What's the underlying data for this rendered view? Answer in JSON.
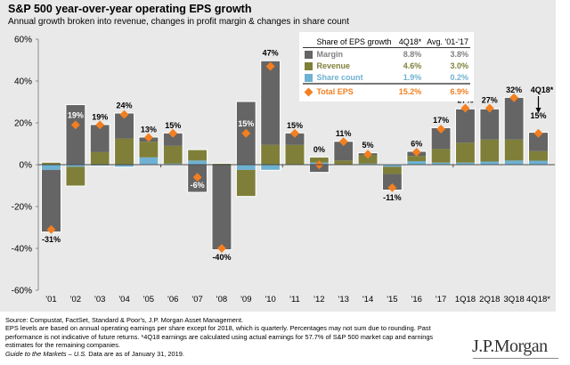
{
  "header": {
    "title": "S&P 500 year-over-year operating EPS growth",
    "subtitle": "Annual growth broken into revenue, changes in profit margin & changes in share count"
  },
  "legend": {
    "header": [
      "Share of EPS growth",
      "4Q18*",
      "Avg. '01-'17"
    ],
    "rows": [
      {
        "label": "Margin",
        "q": "8.8%",
        "avg": "3.8%",
        "color": "#656565"
      },
      {
        "label": "Revenue",
        "q": "4.6%",
        "avg": "3.0%",
        "color": "#7f7f3a"
      },
      {
        "label": "Share count",
        "q": "1.9%",
        "avg": "0.2%",
        "color": "#6fb1d2"
      },
      {
        "label": "Total EPS",
        "q": "15.2%",
        "avg": "6.9%",
        "color": "#f37f21"
      }
    ]
  },
  "chart_data": {
    "type": "bar",
    "stacked": true,
    "title": "S&P 500 year-over-year operating EPS growth",
    "subtitle": "Annual growth broken into revenue, changes in profit margin & changes in share count",
    "xlabel": "",
    "ylabel": "",
    "ylim": [
      -60,
      60
    ],
    "yticks": [
      60,
      40,
      20,
      0,
      -20,
      -40,
      -60
    ],
    "ytick_labels": [
      "60%",
      "40%",
      "20%",
      "0%",
      "-20%",
      "-40%",
      "-60%"
    ],
    "grid": false,
    "categories": [
      "'01",
      "'02",
      "'03",
      "'04",
      "'05",
      "'06",
      "'07",
      "'08",
      "'09",
      "'10",
      "'11",
      "'12",
      "'13",
      "'14",
      "'15",
      "'16",
      "'17",
      "1Q18",
      "2Q18",
      "3Q18",
      "4Q18*"
    ],
    "series": [
      {
        "name": "Share count",
        "color": "#6fb1d2",
        "values": [
          -2.5,
          -1.0,
          -0.5,
          -1.0,
          3.5,
          0.5,
          2.0,
          0.0,
          -2.5,
          -2.5,
          0.0,
          1.0,
          0.0,
          0.5,
          -1.0,
          1.7,
          1.0,
          1.0,
          1.5,
          2.0,
          1.9
        ]
      },
      {
        "name": "Revenue",
        "color": "#7f7f3a",
        "values": [
          1.0,
          -9.0,
          6.0,
          12.5,
          7.5,
          8.5,
          5.0,
          0.5,
          -12.5,
          9.5,
          9.5,
          2.5,
          2.0,
          4.0,
          -3.5,
          2.5,
          6.5,
          9.5,
          10.5,
          10.0,
          4.6
        ]
      },
      {
        "name": "Margin",
        "color": "#656565",
        "values": [
          -29.5,
          28.5,
          13.0,
          12.0,
          2.0,
          6.0,
          -13.0,
          -40.5,
          30.0,
          40.0,
          5.5,
          -3.5,
          9.0,
          1.0,
          -7.5,
          2.0,
          10.0,
          16.0,
          14.5,
          20.0,
          8.8
        ]
      }
    ],
    "total_eps": {
      "name": "Total EPS",
      "color": "#f37f21",
      "values": [
        -31,
        19,
        19,
        24,
        13,
        15,
        -6,
        -40,
        15,
        47,
        15,
        0,
        11,
        5,
        -11,
        6,
        17,
        27,
        27,
        32,
        15
      ],
      "labels": [
        "-31%",
        "19%",
        "19%",
        "24%",
        "13%",
        "15%",
        "-6%",
        "-40%",
        "15%",
        "47%",
        "15%",
        "0%",
        "11%",
        "5%",
        "-11%",
        "6%",
        "17%",
        "27%",
        "27%",
        "32%",
        "15%"
      ]
    },
    "annotations": [
      {
        "text": "4Q18*",
        "target": "4Q18*",
        "type": "arrow"
      }
    ],
    "legend_position": "top-right"
  },
  "footer": {
    "lines": [
      "Source: Compustat, FactSet, Standard & Poor's, J.P. Morgan Asset Management.",
      "EPS levels are based on annual operating earnings per share except for 2018, which is quarterly. Percentages may not sum due to rounding. Past",
      "performance is not indicative of future returns. *4Q18 earnings are calculated using actual earnings for 57.7% of S&P 500 market cap and earnings",
      "estimates for the remaining companies."
    ],
    "guide_italic": "Guide to the Markets – U.S.",
    "guide_rest": " Data are as of January 31, 2019."
  },
  "logo": "J.P.Morgan"
}
